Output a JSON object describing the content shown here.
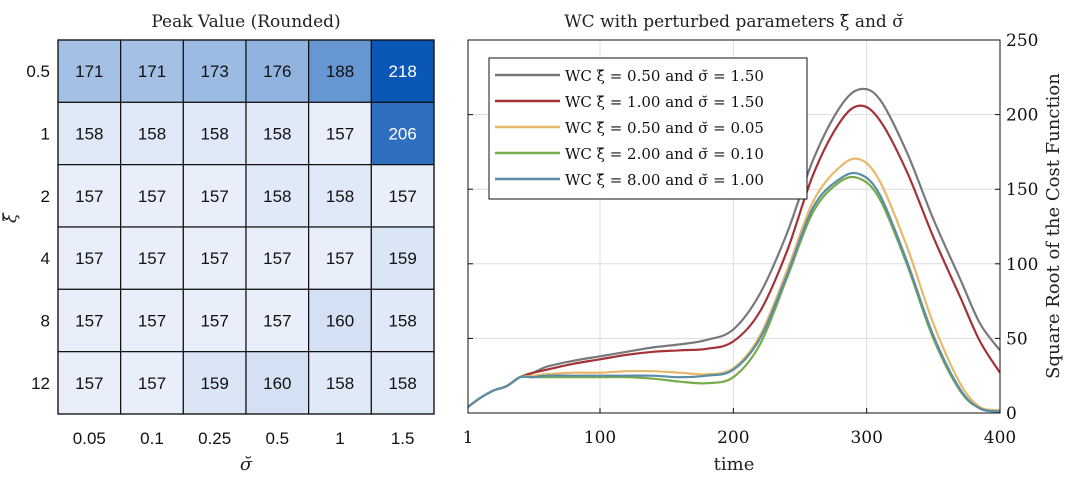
{
  "chart_data": [
    {
      "type": "heatmap",
      "title": "Peak Value (Rounded)",
      "xlabel": "σ̆",
      "ylabel": "ξ̆",
      "x_categories": [
        "0.05",
        "0.1",
        "0.25",
        "0.5",
        "1",
        "1.5"
      ],
      "y_categories": [
        "0.5",
        "1",
        "2",
        "4",
        "8",
        "12"
      ],
      "values": [
        [
          171,
          171,
          173,
          176,
          188,
          218
        ],
        [
          158,
          158,
          158,
          158,
          157,
          206
        ],
        [
          157,
          157,
          157,
          158,
          158,
          157
        ],
        [
          157,
          157,
          157,
          157,
          157,
          159
        ],
        [
          157,
          157,
          157,
          157,
          160,
          158
        ],
        [
          157,
          157,
          159,
          160,
          158,
          158
        ]
      ],
      "colormap": {
        "low": "#e8effa",
        "high": "#0b57b5"
      }
    },
    {
      "type": "line",
      "title": "WC with perturbed parameters ξ̆ and σ̆",
      "xlabel": "time",
      "ylabel": "Square Root of the Cost Function",
      "xlim": [
        1,
        400
      ],
      "ylim": [
        0,
        250
      ],
      "x_ticks": [
        "1",
        "100",
        "200",
        "300",
        "400"
      ],
      "y_ticks": [
        "0",
        "50",
        "100",
        "150",
        "200",
        "250"
      ],
      "y_axis_side": "right",
      "grid": true,
      "legend_position": "top-left",
      "x": [
        1,
        10,
        20,
        30,
        40,
        50,
        60,
        80,
        100,
        120,
        140,
        160,
        180,
        200,
        220,
        240,
        260,
        280,
        295,
        310,
        330,
        350,
        370,
        385,
        400
      ],
      "series": [
        {
          "name": "WC ξ̆ = 0.50 and σ̆ = 1.50",
          "color": "#78787c",
          "values": [
            4,
            10,
            15,
            18,
            24,
            27,
            31,
            35,
            38,
            41,
            44,
            46,
            49,
            56,
            80,
            120,
            170,
            205,
            217,
            210,
            175,
            130,
            90,
            60,
            42
          ]
        },
        {
          "name": "WC ξ̆ = 1.00 and σ̆ = 1.50",
          "color": "#a43238",
          "values": [
            4,
            10,
            15,
            18,
            24,
            27,
            29,
            33,
            36,
            39,
            41,
            42,
            43,
            48,
            68,
            108,
            160,
            195,
            206,
            196,
            162,
            118,
            78,
            48,
            27
          ]
        },
        {
          "name": "WC ξ̆ = 0.50 and σ̆ = 0.05",
          "color": "#e8b86a",
          "values": [
            4,
            10,
            15,
            18,
            24,
            25,
            26,
            27,
            27,
            28,
            28,
            27,
            26,
            30,
            52,
            95,
            142,
            165,
            170,
            155,
            112,
            60,
            20,
            4,
            2
          ]
        },
        {
          "name": "WC ξ̆ = 2.00 and σ̆ = 0.10",
          "color": "#77ab48",
          "values": [
            4,
            10,
            15,
            18,
            24,
            24,
            24,
            24,
            24,
            24,
            23,
            21,
            20,
            24,
            46,
            90,
            135,
            155,
            157,
            143,
            100,
            50,
            15,
            3,
            1
          ]
        },
        {
          "name": "WC ξ̆ = 8.00 and σ̆ = 1.00",
          "color": "#5b8ca8",
          "values": [
            4,
            10,
            15,
            18,
            24,
            24,
            25,
            25,
            25,
            25,
            25,
            24,
            25,
            29,
            50,
            92,
            138,
            157,
            160,
            146,
            102,
            52,
            16,
            3,
            1
          ]
        }
      ]
    }
  ]
}
